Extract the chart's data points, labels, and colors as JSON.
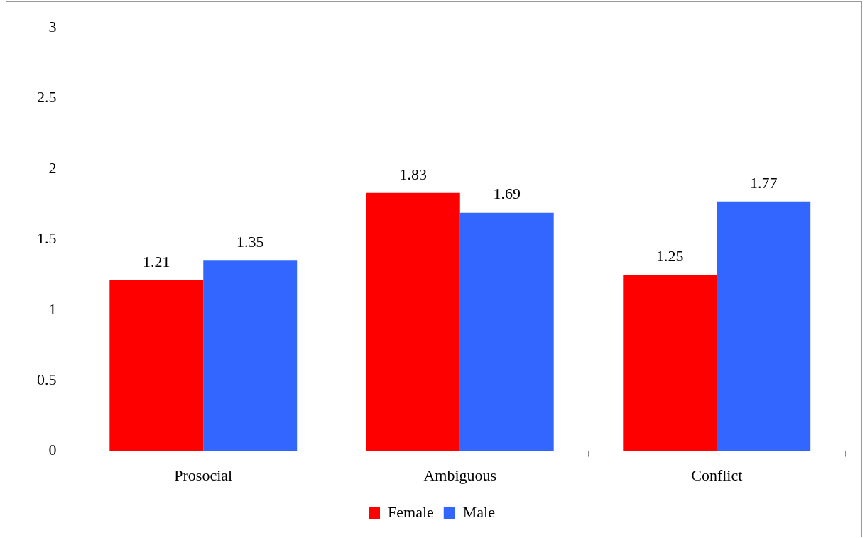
{
  "chart_data": {
    "type": "bar",
    "categories": [
      "Prosocial",
      "Ambiguous",
      "Conflict"
    ],
    "series": [
      {
        "name": "Female",
        "color": "#ff0000",
        "values": [
          1.21,
          1.83,
          1.25
        ]
      },
      {
        "name": "Male",
        "color": "#3366ff",
        "values": [
          1.35,
          1.69,
          1.77
        ]
      }
    ],
    "ylim": [
      0,
      3
    ],
    "yticks": [
      0,
      0.5,
      1,
      1.5,
      2,
      2.5,
      3
    ],
    "grid": false,
    "legend": "bottom",
    "data_labels": true
  }
}
